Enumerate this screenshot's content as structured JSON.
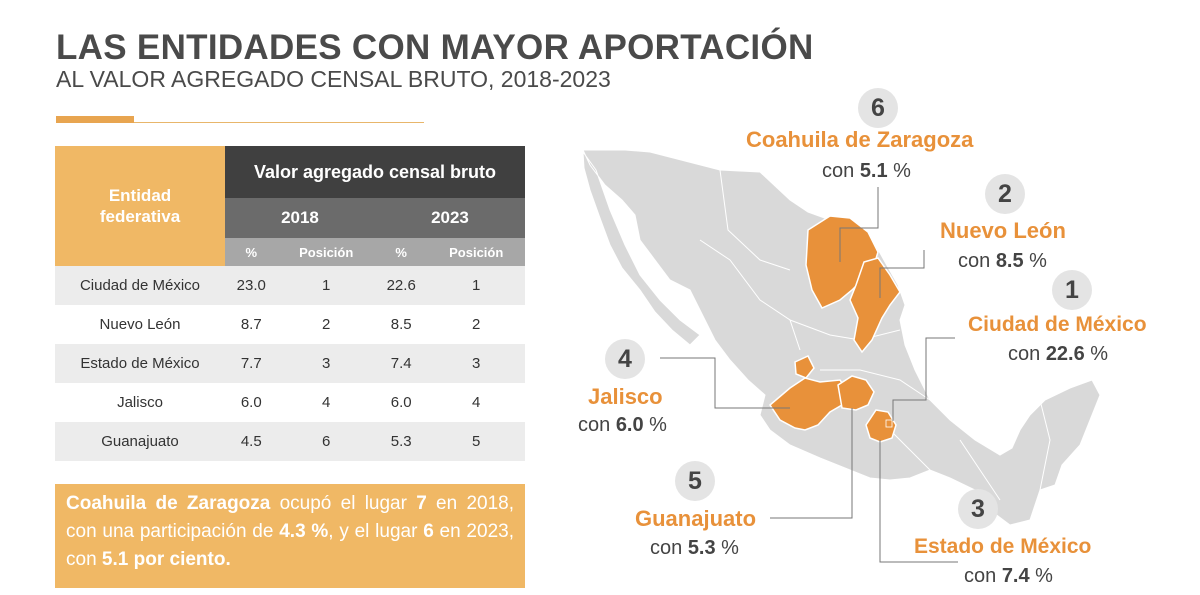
{
  "header": {
    "title": "LAS ENTIDADES CON MAYOR APORTACIÓN",
    "subtitle": "AL VALOR AGREGADO CENSAL BRUTO, 2018-2023"
  },
  "table": {
    "entity_header": "Entidad federativa",
    "main_header": "Valor agregado censal bruto",
    "years": [
      "2018",
      "2023"
    ],
    "sub_headers": [
      "%",
      "Posición",
      "%",
      "Posición"
    ],
    "rows": [
      {
        "entity": "Ciudad de México",
        "pct_2018": "23.0",
        "pos_2018": "1",
        "pct_2023": "22.6",
        "pos_2023": "1"
      },
      {
        "entity": "Nuevo León",
        "pct_2018": "8.7",
        "pos_2018": "2",
        "pct_2023": "8.5",
        "pos_2023": "2"
      },
      {
        "entity": "Estado de México",
        "pct_2018": "7.7",
        "pos_2018": "3",
        "pct_2023": "7.4",
        "pos_2023": "3"
      },
      {
        "entity": "Jalisco",
        "pct_2018": "6.0",
        "pos_2018": "4",
        "pct_2023": "6.0",
        "pos_2023": "4"
      },
      {
        "entity": "Guanajuato",
        "pct_2018": "4.5",
        "pos_2018": "6",
        "pct_2023": "5.3",
        "pos_2023": "5"
      }
    ]
  },
  "note": {
    "p1": "Coahuila de Zaragoza",
    "p2": " ocupó el lugar ",
    "p3": "7",
    "p4": " en 2018, con una participación de ",
    "p5": "4.3 %",
    "p6": ", y el lugar ",
    "p7": "6",
    "p8": " en 2023, con ",
    "p9": "5.1 por ciento."
  },
  "map": {
    "highlight_color": "#e8913a",
    "base_color": "#d9d9d9",
    "callouts": [
      {
        "rank": "6",
        "name": "Coahuila de Zaragoza",
        "prefix": "con ",
        "value": "5.1",
        "unit": " %"
      },
      {
        "rank": "2",
        "name": "Nuevo León",
        "prefix": "con ",
        "value": "8.5",
        "unit": " %"
      },
      {
        "rank": "1",
        "name": "Ciudad de México",
        "prefix": "con ",
        "value": "22.6",
        "unit": " %"
      },
      {
        "rank": "4",
        "name": "Jalisco",
        "prefix": "con ",
        "value": "6.0",
        "unit": " %"
      },
      {
        "rank": "5",
        "name": "Guanajuato",
        "prefix": "con ",
        "value": "5.3",
        "unit": " %"
      },
      {
        "rank": "3",
        "name": "Estado de México",
        "prefix": "con ",
        "value": "7.4",
        "unit": " %"
      }
    ]
  }
}
